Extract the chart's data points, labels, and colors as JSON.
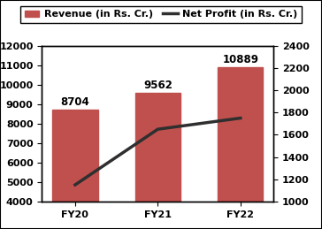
{
  "categories": [
    "FY20",
    "FY21",
    "FY22"
  ],
  "revenue": [
    8704,
    9562,
    10889
  ],
  "net_profit": [
    1150,
    1650,
    1750
  ],
  "bar_color": "#C0504D",
  "line_color": "#2F2F2F",
  "left_ylim": [
    4000,
    12000
  ],
  "right_ylim": [
    1000,
    2400
  ],
  "left_yticks": [
    4000,
    5000,
    6000,
    7000,
    8000,
    9000,
    10000,
    11000,
    12000
  ],
  "right_yticks": [
    1000,
    1200,
    1400,
    1600,
    1800,
    2000,
    2200,
    2400
  ],
  "legend_revenue": "Revenue (in Rs. Cr.)",
  "legend_profit": "Net Profit (in Rs. Cr.)",
  "background_color": "#FFFFFF",
  "border_color": "#000000",
  "bar_label_fontsize": 8.5,
  "tick_fontsize": 8,
  "legend_fontsize": 8
}
